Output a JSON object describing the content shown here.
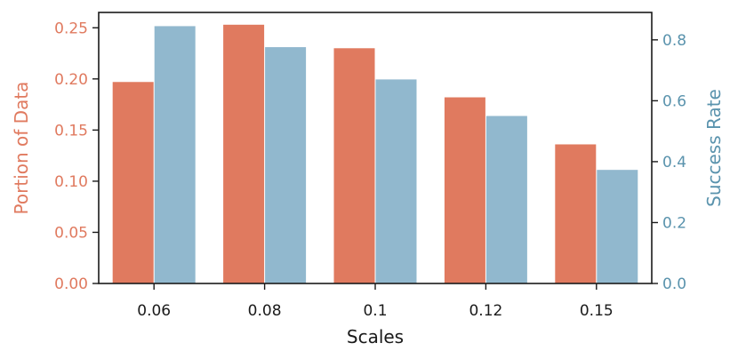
{
  "chart_data": {
    "type": "bar",
    "xlabel": "Scales",
    "categories": [
      "0.06",
      "0.08",
      "0.1",
      "0.12",
      "0.15"
    ],
    "left_axis": {
      "label": "Portion of Data",
      "ylim": [
        0,
        0.265
      ],
      "ticks": [
        "0.00",
        "0.05",
        "0.10",
        "0.15",
        "0.20",
        "0.25"
      ],
      "color": "#e07a5f"
    },
    "right_axis": {
      "label": "Success Rate",
      "ylim": [
        0,
        0.89
      ],
      "ticks": [
        "0.0",
        "0.2",
        "0.4",
        "0.6",
        "0.8"
      ],
      "color": "#5a93ad"
    },
    "series": [
      {
        "axis": "left",
        "values": [
          0.197,
          0.253,
          0.23,
          0.182,
          0.136
        ],
        "color": "#e07a5f"
      },
      {
        "axis": "right",
        "values": [
          0.845,
          0.776,
          0.67,
          0.55,
          0.373
        ],
        "color": "#91b8ce"
      }
    ],
    "grid": false,
    "legend": "none"
  }
}
